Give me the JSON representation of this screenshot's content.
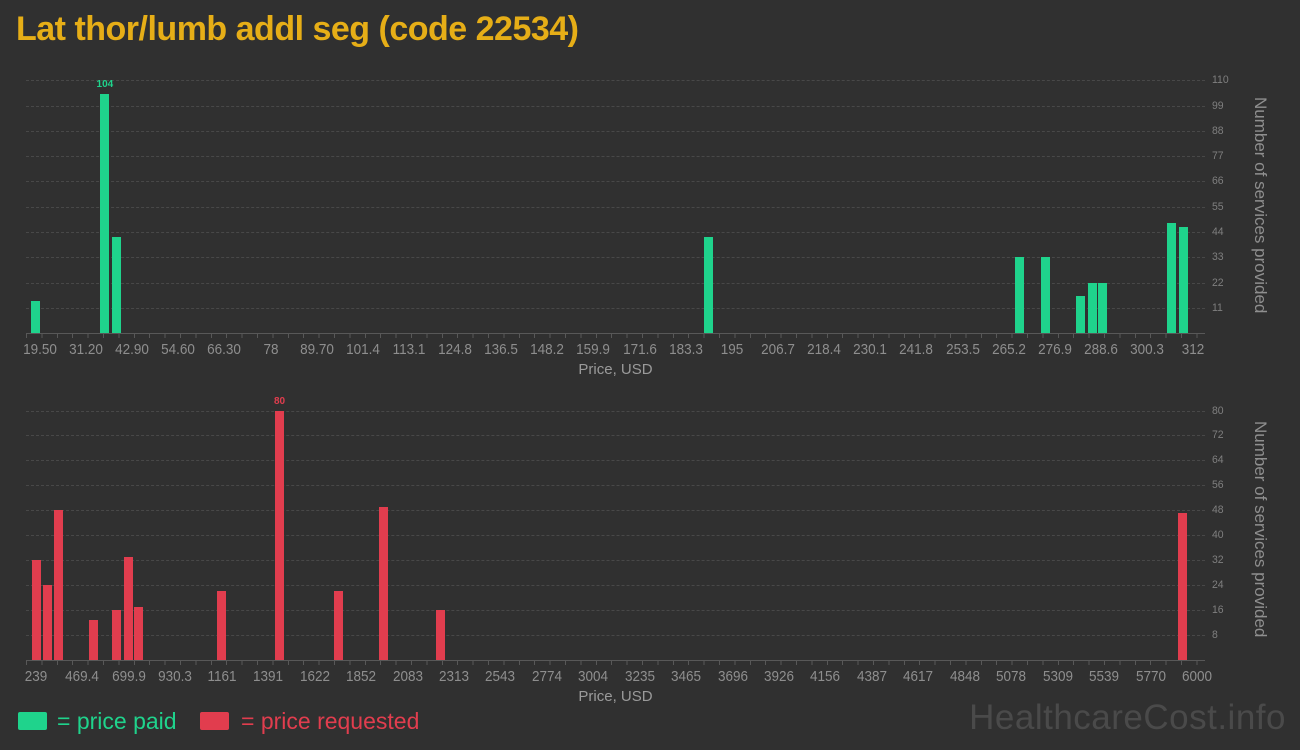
{
  "title": "Lat thor/lumb addl seg (code 22534)",
  "watermark": "HealthcareCost.info",
  "legend": {
    "paid_label": "= price paid",
    "requested_label": "= price requested"
  },
  "colors": {
    "background": "#303030",
    "title": "#e6ae17",
    "paid": "#1fd38c",
    "requested": "#e13d4e",
    "grid": "#484848",
    "tick_label": "#8e8e8e",
    "axis_title": "#9a9a9a",
    "watermark": "#4a4a4a"
  },
  "chart_data": [
    {
      "type": "bar",
      "name": "price paid",
      "color_key": "paid",
      "xlabel": "Price, USD",
      "ylabel": "Number of services provided",
      "grid": "dashed horizontal",
      "y_axis_position": "right",
      "legend_position": "bottom",
      "xlim": [
        16,
        315
      ],
      "ylim": [
        0,
        111
      ],
      "x_tick_labels": [
        "19.50",
        "31.20",
        "42.90",
        "54.60",
        "66.30",
        "78",
        "89.70",
        "101.4",
        "113.1",
        "124.8",
        "136.5",
        "148.2",
        "159.9",
        "171.6",
        "183.3",
        "195",
        "206.7",
        "218.4",
        "230.1",
        "241.8",
        "253.5",
        "265.2",
        "276.9",
        "288.6",
        "300.3",
        "312"
      ],
      "y_tick_labels": [
        110,
        99,
        88,
        77,
        66,
        55,
        44,
        33,
        22,
        11
      ],
      "points": [
        {
          "x": 18.5,
          "y": 14
        },
        {
          "x": 36,
          "y": 104,
          "label": "104"
        },
        {
          "x": 39,
          "y": 42
        },
        {
          "x": 189,
          "y": 42
        },
        {
          "x": 268,
          "y": 33
        },
        {
          "x": 274.5,
          "y": 33
        },
        {
          "x": 283.5,
          "y": 16
        },
        {
          "x": 286.5,
          "y": 22
        },
        {
          "x": 289,
          "y": 22
        },
        {
          "x": 306.5,
          "y": 48
        },
        {
          "x": 309.5,
          "y": 46
        }
      ]
    },
    {
      "type": "bar",
      "name": "price requested",
      "color_key": "requested",
      "xlabel": "Price, USD",
      "ylabel": "Number of services provided",
      "grid": "dashed horizontal",
      "y_axis_position": "right",
      "legend_position": "bottom",
      "xlim": [
        190,
        6040
      ],
      "ylim": [
        0,
        84
      ],
      "x_tick_labels": [
        "239",
        "469.4",
        "699.9",
        "930.3",
        "1161",
        "1391",
        "1622",
        "1852",
        "2083",
        "2313",
        "2543",
        "2774",
        "3004",
        "3235",
        "3465",
        "3696",
        "3926",
        "4156",
        "4387",
        "4617",
        "4848",
        "5078",
        "5309",
        "5539",
        "5770",
        "6000"
      ],
      "y_tick_labels": [
        80,
        72,
        64,
        56,
        48,
        40,
        32,
        24,
        16,
        8
      ],
      "points": [
        {
          "x": 240,
          "y": 32
        },
        {
          "x": 295,
          "y": 24
        },
        {
          "x": 352,
          "y": 48
        },
        {
          "x": 524,
          "y": 13
        },
        {
          "x": 640,
          "y": 16
        },
        {
          "x": 697,
          "y": 33
        },
        {
          "x": 748,
          "y": 17
        },
        {
          "x": 1158,
          "y": 22
        },
        {
          "x": 1448,
          "y": 80,
          "label": "80"
        },
        {
          "x": 1738,
          "y": 22
        },
        {
          "x": 1962,
          "y": 49
        },
        {
          "x": 2247,
          "y": 16
        },
        {
          "x": 5930,
          "y": 47
        }
      ]
    }
  ]
}
